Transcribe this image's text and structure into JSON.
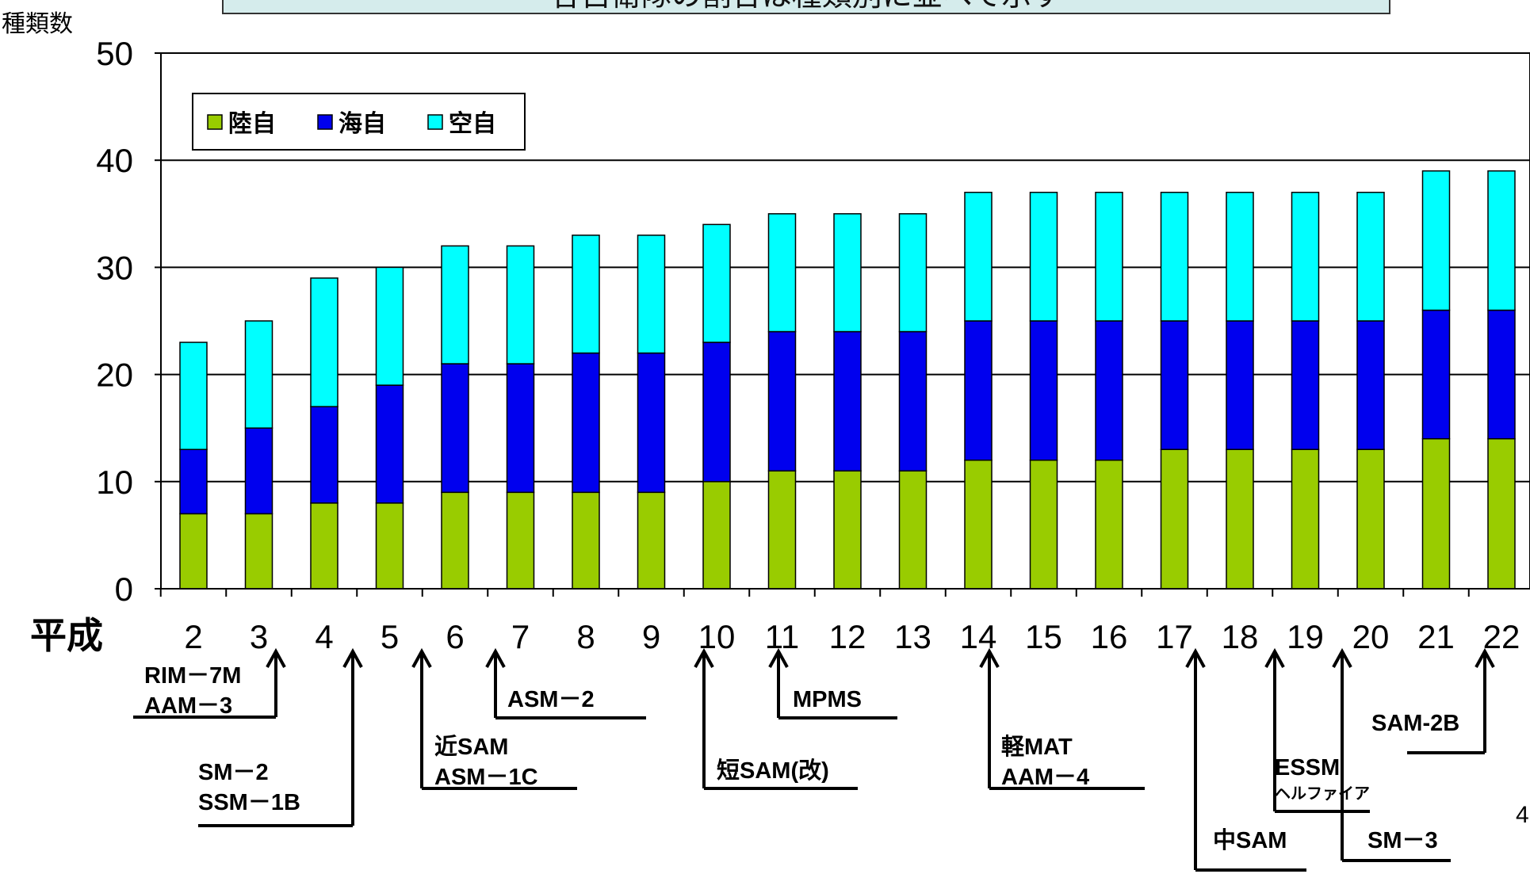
{
  "header": {
    "title": "各自衛隊の割合は種類別に並べて示す"
  },
  "chart_data": {
    "type": "bar",
    "stacked": true,
    "era_label": "平成",
    "ylabel": "種類数",
    "ylim": [
      0,
      50
    ],
    "yticks": [
      0,
      10,
      20,
      30,
      40,
      50
    ],
    "grid": true,
    "legend_position": "top-left",
    "categories": [
      "2",
      "3",
      "4",
      "5",
      "6",
      "7",
      "8",
      "9",
      "10",
      "11",
      "12",
      "13",
      "14",
      "15",
      "16",
      "17",
      "18",
      "19",
      "20",
      "21",
      "22"
    ],
    "series": [
      {
        "name": "陸自",
        "color": "#99cc00",
        "values": [
          7,
          7,
          8,
          8,
          9,
          9,
          9,
          9,
          10,
          11,
          11,
          11,
          12,
          12,
          12,
          13,
          13,
          13,
          13,
          14,
          14
        ]
      },
      {
        "name": "海自",
        "color": "#0000ee",
        "values": [
          6,
          8,
          9,
          11,
          12,
          12,
          13,
          13,
          13,
          13,
          13,
          13,
          13,
          13,
          13,
          12,
          12,
          12,
          12,
          12,
          12
        ]
      },
      {
        "name": "空自",
        "color": "#00ffff",
        "values": [
          10,
          10,
          12,
          11,
          11,
          11,
          11,
          11,
          11,
          11,
          11,
          11,
          12,
          12,
          12,
          12,
          12,
          12,
          12,
          13,
          13
        ]
      }
    ],
    "annotations": [
      {
        "at": "3",
        "lines": [
          "RIM－7M",
          "AAM－3"
        ]
      },
      {
        "at": "4",
        "lines": [
          "SM－2",
          "SSM－1B"
        ]
      },
      {
        "at": "5",
        "lines": [
          "近SAM",
          "ASM－1C"
        ]
      },
      {
        "at": "7",
        "lines": [
          "ASM－2"
        ]
      },
      {
        "at": "10",
        "lines": [
          "短SAM(改)"
        ]
      },
      {
        "at": "11",
        "lines": [
          "MPMS"
        ]
      },
      {
        "at": "14",
        "lines": [
          "軽MAT",
          "AAM－4"
        ]
      },
      {
        "at": "17",
        "lines": [
          "中SAM"
        ]
      },
      {
        "at": "19",
        "lines": [
          "ESSM",
          "ヘルファイア"
        ]
      },
      {
        "at": "20",
        "lines": [
          "SM－3"
        ]
      },
      {
        "at": "22",
        "lines": [
          "SAM-2B"
        ]
      }
    ]
  },
  "page_number": "4"
}
